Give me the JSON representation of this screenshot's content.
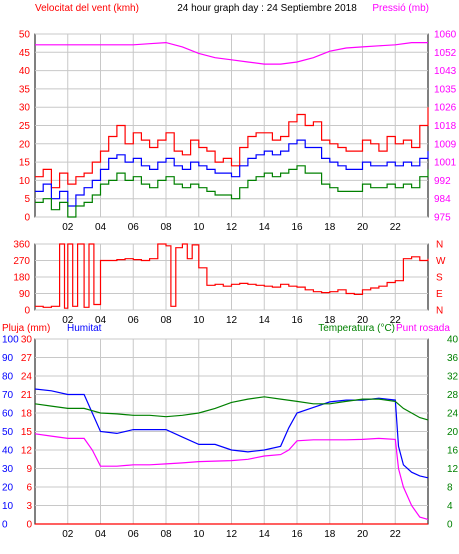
{
  "header": {
    "left_label": "Velocitat del vent (kmh)",
    "title": "24 hour graph day : 24 Septiembre 2018",
    "right_label": "Pressió (mb)"
  },
  "colors": {
    "background": "#ffffff",
    "plot_background": "#ffffff",
    "grid": "#c8c8c8",
    "wind_gust": "#ff0000",
    "wind_avg": "#0000ff",
    "wind_low": "#008000",
    "pressure": "#ff00ff",
    "direction": "#ff0000",
    "rain": "#ff0000",
    "humidity": "#0000ff",
    "temperature": "#008000",
    "dewpoint": "#ff00ff"
  },
  "chart_data": [
    {
      "type": "line",
      "xlabel": "",
      "x_ticks": [
        "02",
        "04",
        "06",
        "08",
        "10",
        "12",
        "14",
        "16",
        "18",
        "20",
        "22"
      ],
      "ylabel": "Velocitat del vent (kmh)",
      "ylim": [
        0,
        50
      ],
      "y_ticks": [
        0,
        5,
        10,
        15,
        20,
        25,
        30,
        35,
        40,
        45,
        50
      ],
      "y2label": "Pressió (mb)",
      "y2lim": [
        975,
        1060
      ],
      "y2_ticks": [
        975,
        984,
        992,
        1001,
        1009,
        1018,
        1026,
        1035,
        1043,
        1052,
        1060
      ],
      "grid": true,
      "series": [
        {
          "name": "",
          "color": "#ff0000",
          "axis": "left",
          "x": [
            0,
            0.5,
            1,
            1.5,
            2,
            2.5,
            3,
            3.5,
            4,
            4.5,
            5,
            5.5,
            6,
            6.5,
            7,
            7.5,
            8,
            8.5,
            9,
            9.5,
            10,
            10.5,
            11,
            11.5,
            12,
            12.5,
            13,
            13.5,
            14,
            14.5,
            15,
            15.5,
            16,
            16.5,
            17,
            17.5,
            18,
            18.5,
            19,
            19.5,
            20,
            20.5,
            21,
            21.5,
            22,
            22.5,
            23,
            23.5,
            24
          ],
          "values": [
            11,
            13,
            8,
            12,
            9,
            11,
            12,
            15,
            18,
            22,
            25,
            20,
            23,
            21,
            19,
            21,
            23,
            18,
            17,
            21,
            19,
            18,
            15,
            16,
            14,
            19,
            22,
            23,
            23,
            21,
            22,
            26,
            28,
            25,
            26,
            21,
            20,
            19,
            18,
            18,
            21,
            20,
            18,
            22,
            20,
            21,
            19,
            25,
            30
          ]
        },
        {
          "name": "",
          "color": "#0000ff",
          "axis": "left",
          "x": [
            0,
            0.5,
            1,
            1.5,
            2,
            2.5,
            3,
            3.5,
            4,
            4.5,
            5,
            5.5,
            6,
            6.5,
            7,
            7.5,
            8,
            8.5,
            9,
            9.5,
            10,
            10.5,
            11,
            11.5,
            12,
            12.5,
            13,
            13.5,
            14,
            14.5,
            15,
            15.5,
            16,
            16.5,
            17,
            17.5,
            18,
            18.5,
            19,
            19.5,
            20,
            20.5,
            21,
            21.5,
            22,
            22.5,
            23,
            23.5,
            24
          ],
          "values": [
            7,
            9,
            5,
            7,
            3,
            6,
            8,
            10,
            13,
            16,
            17,
            15,
            16,
            14,
            13,
            15,
            16,
            14,
            13,
            15,
            14,
            13,
            12,
            12,
            11,
            14,
            16,
            17,
            18,
            17,
            18,
            20,
            21,
            19,
            19,
            16,
            15,
            14,
            13,
            13,
            15,
            14,
            14,
            15,
            14,
            15,
            14,
            16,
            18
          ]
        },
        {
          "name": "",
          "color": "#008000",
          "axis": "left",
          "x": [
            0,
            0.5,
            1,
            1.5,
            2,
            2.5,
            3,
            3.5,
            4,
            4.5,
            5,
            5.5,
            6,
            6.5,
            7,
            7.5,
            8,
            8.5,
            9,
            9.5,
            10,
            10.5,
            11,
            11.5,
            12,
            12.5,
            13,
            13.5,
            14,
            14.5,
            15,
            15.5,
            16,
            16.5,
            17,
            17.5,
            18,
            18.5,
            19,
            19.5,
            20,
            20.5,
            21,
            21.5,
            22,
            22.5,
            23,
            23.5,
            24
          ],
          "values": [
            4,
            5,
            2,
            4,
            0,
            3,
            4,
            6,
            9,
            10,
            12,
            10,
            11,
            9,
            8,
            10,
            11,
            9,
            8,
            9,
            8,
            7,
            6,
            6,
            5,
            8,
            10,
            11,
            12,
            11,
            12,
            13,
            14,
            12,
            12,
            9,
            8,
            7,
            7,
            7,
            9,
            8,
            8,
            9,
            8,
            9,
            8,
            11,
            13
          ]
        },
        {
          "name": "",
          "color": "#ff00ff",
          "axis": "right",
          "x": [
            0,
            1,
            2,
            3,
            4,
            5,
            6,
            7,
            8,
            9,
            10,
            11,
            12,
            13,
            14,
            15,
            16,
            17,
            18,
            19,
            20,
            21,
            22,
            23,
            24
          ],
          "values": [
            1055,
            1055,
            1055,
            1055,
            1055,
            1055,
            1055,
            1055.5,
            1056,
            1054,
            1051,
            1049,
            1048,
            1047,
            1046,
            1046,
            1047,
            1049,
            1052,
            1053.5,
            1054,
            1054.5,
            1055,
            1056,
            1056
          ]
        }
      ]
    },
    {
      "type": "scatter",
      "xlabel": "",
      "x_ticks": [
        "02",
        "04",
        "06",
        "08",
        "10",
        "12",
        "14",
        "16",
        "18",
        "20",
        "22"
      ],
      "ylabel": "",
      "ylim": [
        0,
        360
      ],
      "y_ticks": [
        0,
        90,
        180,
        270,
        360
      ],
      "y2_labels": [
        "N",
        "W",
        "S",
        "E",
        "N"
      ],
      "grid": true,
      "series": [
        {
          "name": "",
          "color": "#ff0000",
          "x": [
            0,
            0.5,
            1,
            1.5,
            1.8,
            2,
            2.3,
            2.6,
            3,
            3.3,
            3.6,
            4,
            4.5,
            5,
            5.5,
            6,
            6.5,
            7,
            7.5,
            8,
            8.3,
            8.6,
            9,
            9.3,
            9.6,
            10,
            10.5,
            11,
            11.5,
            12,
            12.5,
            13,
            13.5,
            14,
            14.5,
            15,
            15.5,
            16,
            16.5,
            17,
            17.5,
            18,
            18.5,
            19,
            19.5,
            20,
            20.5,
            21,
            21.5,
            22,
            22.5,
            23,
            23.5,
            24
          ],
          "values": [
            20,
            15,
            20,
            360,
            10,
            360,
            20,
            360,
            15,
            360,
            30,
            270,
            270,
            275,
            280,
            275,
            270,
            280,
            360,
            350,
            20,
            340,
            360,
            280,
            355,
            230,
            135,
            140,
            130,
            140,
            145,
            140,
            135,
            130,
            125,
            140,
            130,
            125,
            110,
            100,
            95,
            100,
            110,
            90,
            85,
            110,
            120,
            130,
            150,
            160,
            280,
            290,
            270,
            280
          ]
        }
      ]
    },
    {
      "type": "line",
      "xlabel": "",
      "x_ticks": [
        "02",
        "04",
        "06",
        "08",
        "10",
        "12",
        "14",
        "16",
        "18",
        "20",
        "22"
      ],
      "label_left_outer": "Pluja (mm)",
      "label_left_inner": "Humitat",
      "label_right": "Temperatura (°C)",
      "label_right_extra": "Punt rosada",
      "rain_lim": [
        0,
        30
      ],
      "rain_ticks": [
        0,
        3,
        6,
        9,
        12,
        15,
        18,
        21,
        24,
        27,
        30
      ],
      "humidity_lim": [
        0,
        100
      ],
      "humidity_ticks": [
        0,
        10,
        20,
        30,
        40,
        50,
        60,
        70,
        80,
        90,
        100
      ],
      "temperature_lim": [
        0,
        40
      ],
      "temperature_ticks": [
        0,
        4,
        8,
        12,
        16,
        20,
        24,
        28,
        32,
        36,
        40
      ],
      "grid": true,
      "series": [
        {
          "name": "",
          "color": "#ff0000",
          "axis": "rain",
          "x": [
            0,
            24
          ],
          "values": [
            0,
            0
          ]
        },
        {
          "name": "",
          "color": "#0000ff",
          "axis": "humidity",
          "x": [
            0,
            1,
            2,
            3,
            3.5,
            4,
            5,
            6,
            7,
            8,
            9,
            10,
            11,
            12,
            13,
            14,
            15,
            15.5,
            16,
            17,
            18,
            19,
            20,
            21,
            22,
            22.2,
            22.5,
            23,
            23.5,
            24
          ],
          "values": [
            73,
            72,
            70,
            70,
            60,
            50,
            49,
            51,
            51,
            51,
            47,
            43,
            43,
            40,
            39,
            40,
            42,
            52,
            60,
            63,
            66,
            67,
            67,
            68,
            67,
            42,
            32,
            28,
            26,
            25
          ]
        },
        {
          "name": "",
          "color": "#008000",
          "axis": "temperature",
          "x": [
            0,
            1,
            2,
            3,
            3.5,
            4,
            5,
            6,
            7,
            8,
            9,
            10,
            11,
            12,
            13,
            14,
            15,
            16,
            17,
            18,
            19,
            20,
            21,
            22,
            22.5,
            23,
            23.5,
            24
          ],
          "values": [
            26,
            25.5,
            25,
            25,
            24.5,
            24,
            23.8,
            23.5,
            23.5,
            23.2,
            23.5,
            24,
            25,
            26.3,
            27,
            27.5,
            27,
            26.5,
            26,
            26,
            26.5,
            27,
            27,
            26.5,
            25,
            24,
            23,
            22.5
          ]
        },
        {
          "name": "",
          "color": "#ff00ff",
          "axis": "temperature",
          "x": [
            0,
            1,
            2,
            3,
            3.5,
            4,
            5,
            6,
            7,
            8,
            9,
            10,
            11,
            12,
            13,
            14,
            15,
            15.5,
            16,
            17,
            18,
            19,
            20,
            21,
            22,
            22.2,
            22.5,
            23,
            23.5,
            24
          ],
          "values": [
            19.5,
            19,
            18.5,
            18.5,
            16,
            12.5,
            12.5,
            12.8,
            12.8,
            13,
            13.2,
            13.5,
            13.6,
            13.7,
            14,
            14.7,
            15,
            16,
            18,
            18.2,
            18.2,
            18.2,
            18.3,
            18.5,
            18.3,
            12,
            8,
            4,
            1.5,
            1
          ]
        }
      ]
    }
  ]
}
